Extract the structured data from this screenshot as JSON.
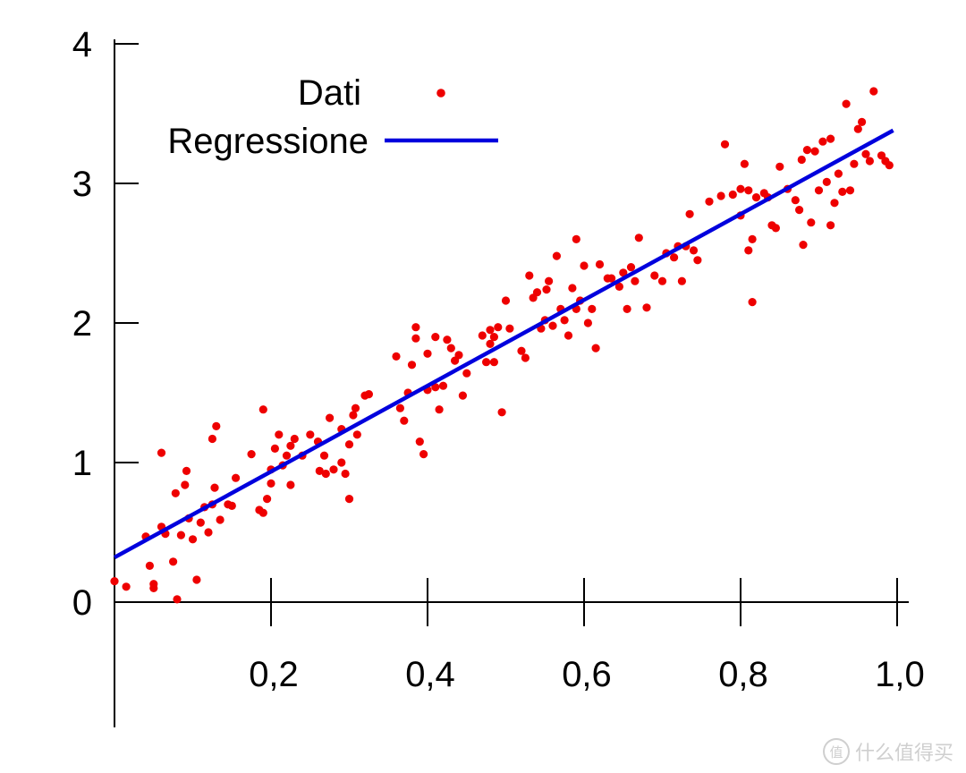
{
  "chart_data": {
    "type": "scatter",
    "title": "",
    "xlabel": "",
    "ylabel": "",
    "xlim": [
      0,
      1.0
    ],
    "ylim": [
      0,
      4
    ],
    "x_ticks": [
      0.2,
      0.4,
      0.6,
      0.8,
      1.0
    ],
    "x_tick_labels": [
      "0,2",
      "0,4",
      "0,6",
      "0,8",
      "1,0"
    ],
    "y_ticks": [
      0,
      1,
      2,
      3,
      4
    ],
    "y_tick_labels": [
      "0",
      "1",
      "2",
      "3",
      "4"
    ],
    "grid": false,
    "legend_position": "top-left",
    "series": [
      {
        "name": "Dati",
        "kind": "points",
        "color": "#ee0000",
        "points": [
          [
            0.0,
            0.15
          ],
          [
            0.015,
            0.11
          ],
          [
            0.04,
            0.47
          ],
          [
            0.045,
            0.26
          ],
          [
            0.05,
            0.13
          ],
          [
            0.05,
            0.1
          ],
          [
            0.06,
            1.07
          ],
          [
            0.06,
            0.54
          ],
          [
            0.065,
            0.49
          ],
          [
            0.075,
            0.29
          ],
          [
            0.078,
            0.78
          ],
          [
            0.08,
            0.02
          ],
          [
            0.085,
            0.48
          ],
          [
            0.09,
            0.84
          ],
          [
            0.092,
            0.94
          ],
          [
            0.095,
            0.6
          ],
          [
            0.1,
            0.45
          ],
          [
            0.105,
            0.16
          ],
          [
            0.11,
            0.57
          ],
          [
            0.115,
            0.68
          ],
          [
            0.12,
            0.5
          ],
          [
            0.125,
            0.7
          ],
          [
            0.125,
            1.17
          ],
          [
            0.128,
            0.82
          ],
          [
            0.13,
            1.26
          ],
          [
            0.135,
            0.59
          ],
          [
            0.145,
            0.7
          ],
          [
            0.15,
            0.69
          ],
          [
            0.155,
            0.89
          ],
          [
            0.175,
            1.06
          ],
          [
            0.185,
            0.66
          ],
          [
            0.19,
            0.64
          ],
          [
            0.19,
            1.38
          ],
          [
            0.195,
            0.74
          ],
          [
            0.2,
            0.85
          ],
          [
            0.2,
            0.95
          ],
          [
            0.205,
            1.1
          ],
          [
            0.21,
            1.2
          ],
          [
            0.215,
            0.98
          ],
          [
            0.22,
            1.05
          ],
          [
            0.225,
            1.12
          ],
          [
            0.225,
            0.84
          ],
          [
            0.23,
            1.17
          ],
          [
            0.24,
            1.05
          ],
          [
            0.25,
            1.2
          ],
          [
            0.26,
            1.15
          ],
          [
            0.262,
            0.94
          ],
          [
            0.268,
            1.05
          ],
          [
            0.27,
            0.92
          ],
          [
            0.275,
            1.32
          ],
          [
            0.28,
            0.95
          ],
          [
            0.29,
            1.0
          ],
          [
            0.29,
            1.24
          ],
          [
            0.295,
            0.92
          ],
          [
            0.3,
            1.13
          ],
          [
            0.3,
            0.74
          ],
          [
            0.305,
            1.34
          ],
          [
            0.308,
            1.39
          ],
          [
            0.31,
            1.2
          ],
          [
            0.32,
            1.48
          ],
          [
            0.325,
            1.49
          ],
          [
            0.36,
            1.76
          ],
          [
            0.365,
            1.39
          ],
          [
            0.37,
            1.3
          ],
          [
            0.375,
            1.5
          ],
          [
            0.38,
            1.7
          ],
          [
            0.385,
            1.97
          ],
          [
            0.385,
            1.89
          ],
          [
            0.39,
            1.15
          ],
          [
            0.395,
            1.06
          ],
          [
            0.4,
            1.52
          ],
          [
            0.4,
            1.78
          ],
          [
            0.41,
            1.54
          ],
          [
            0.41,
            1.9
          ],
          [
            0.415,
            1.38
          ],
          [
            0.42,
            1.55
          ],
          [
            0.425,
            1.88
          ],
          [
            0.43,
            1.82
          ],
          [
            0.435,
            1.73
          ],
          [
            0.44,
            1.77
          ],
          [
            0.445,
            1.48
          ],
          [
            0.45,
            1.64
          ],
          [
            0.47,
            1.91
          ],
          [
            0.475,
            1.72
          ],
          [
            0.48,
            1.85
          ],
          [
            0.48,
            1.95
          ],
          [
            0.485,
            1.9
          ],
          [
            0.485,
            1.72
          ],
          [
            0.49,
            1.97
          ],
          [
            0.495,
            1.36
          ],
          [
            0.5,
            2.16
          ],
          [
            0.505,
            1.96
          ],
          [
            0.52,
            1.8
          ],
          [
            0.525,
            1.75
          ],
          [
            0.53,
            2.34
          ],
          [
            0.535,
            2.18
          ],
          [
            0.54,
            2.22
          ],
          [
            0.545,
            1.96
          ],
          [
            0.55,
            2.02
          ],
          [
            0.552,
            2.24
          ],
          [
            0.555,
            2.3
          ],
          [
            0.56,
            1.98
          ],
          [
            0.565,
            2.48
          ],
          [
            0.57,
            2.1
          ],
          [
            0.575,
            2.02
          ],
          [
            0.58,
            1.91
          ],
          [
            0.585,
            2.25
          ],
          [
            0.59,
            2.1
          ],
          [
            0.59,
            2.6
          ],
          [
            0.595,
            2.16
          ],
          [
            0.6,
            2.41
          ],
          [
            0.605,
            2.0
          ],
          [
            0.61,
            2.1
          ],
          [
            0.615,
            1.82
          ],
          [
            0.62,
            2.42
          ],
          [
            0.63,
            2.32
          ],
          [
            0.635,
            2.32
          ],
          [
            0.645,
            2.26
          ],
          [
            0.65,
            2.36
          ],
          [
            0.655,
            2.1
          ],
          [
            0.66,
            2.4
          ],
          [
            0.665,
            2.3
          ],
          [
            0.67,
            2.61
          ],
          [
            0.68,
            2.11
          ],
          [
            0.69,
            2.34
          ],
          [
            0.7,
            2.3
          ],
          [
            0.705,
            2.5
          ],
          [
            0.715,
            2.47
          ],
          [
            0.72,
            2.55
          ],
          [
            0.725,
            2.3
          ],
          [
            0.73,
            2.55
          ],
          [
            0.735,
            2.78
          ],
          [
            0.74,
            2.52
          ],
          [
            0.745,
            2.45
          ],
          [
            0.76,
            2.87
          ],
          [
            0.775,
            2.91
          ],
          [
            0.78,
            3.28
          ],
          [
            0.79,
            2.92
          ],
          [
            0.8,
            2.77
          ],
          [
            0.8,
            2.96
          ],
          [
            0.805,
            3.14
          ],
          [
            0.81,
            2.52
          ],
          [
            0.81,
            2.95
          ],
          [
            0.815,
            2.15
          ],
          [
            0.815,
            2.6
          ],
          [
            0.82,
            2.9
          ],
          [
            0.83,
            2.93
          ],
          [
            0.835,
            2.9
          ],
          [
            0.84,
            2.7
          ],
          [
            0.845,
            2.68
          ],
          [
            0.85,
            3.12
          ],
          [
            0.86,
            2.96
          ],
          [
            0.87,
            2.88
          ],
          [
            0.875,
            2.81
          ],
          [
            0.878,
            3.17
          ],
          [
            0.88,
            2.56
          ],
          [
            0.885,
            3.24
          ],
          [
            0.89,
            2.72
          ],
          [
            0.895,
            3.23
          ],
          [
            0.9,
            2.95
          ],
          [
            0.905,
            3.3
          ],
          [
            0.91,
            3.01
          ],
          [
            0.915,
            3.32
          ],
          [
            0.915,
            2.7
          ],
          [
            0.92,
            2.86
          ],
          [
            0.925,
            3.07
          ],
          [
            0.93,
            2.94
          ],
          [
            0.935,
            3.57
          ],
          [
            0.94,
            2.95
          ],
          [
            0.945,
            3.14
          ],
          [
            0.95,
            3.39
          ],
          [
            0.955,
            3.44
          ],
          [
            0.96,
            3.21
          ],
          [
            0.965,
            3.16
          ],
          [
            0.97,
            3.66
          ],
          [
            0.98,
            3.2
          ],
          [
            0.985,
            3.16
          ],
          [
            0.99,
            3.13
          ]
        ]
      },
      {
        "name": "Regressione",
        "kind": "line",
        "color": "#0000dd",
        "x": [
          0.0,
          0.995
        ],
        "y": [
          0.32,
          3.38
        ]
      }
    ]
  },
  "watermark": {
    "icon_text": "值",
    "text": "什么值得买"
  }
}
